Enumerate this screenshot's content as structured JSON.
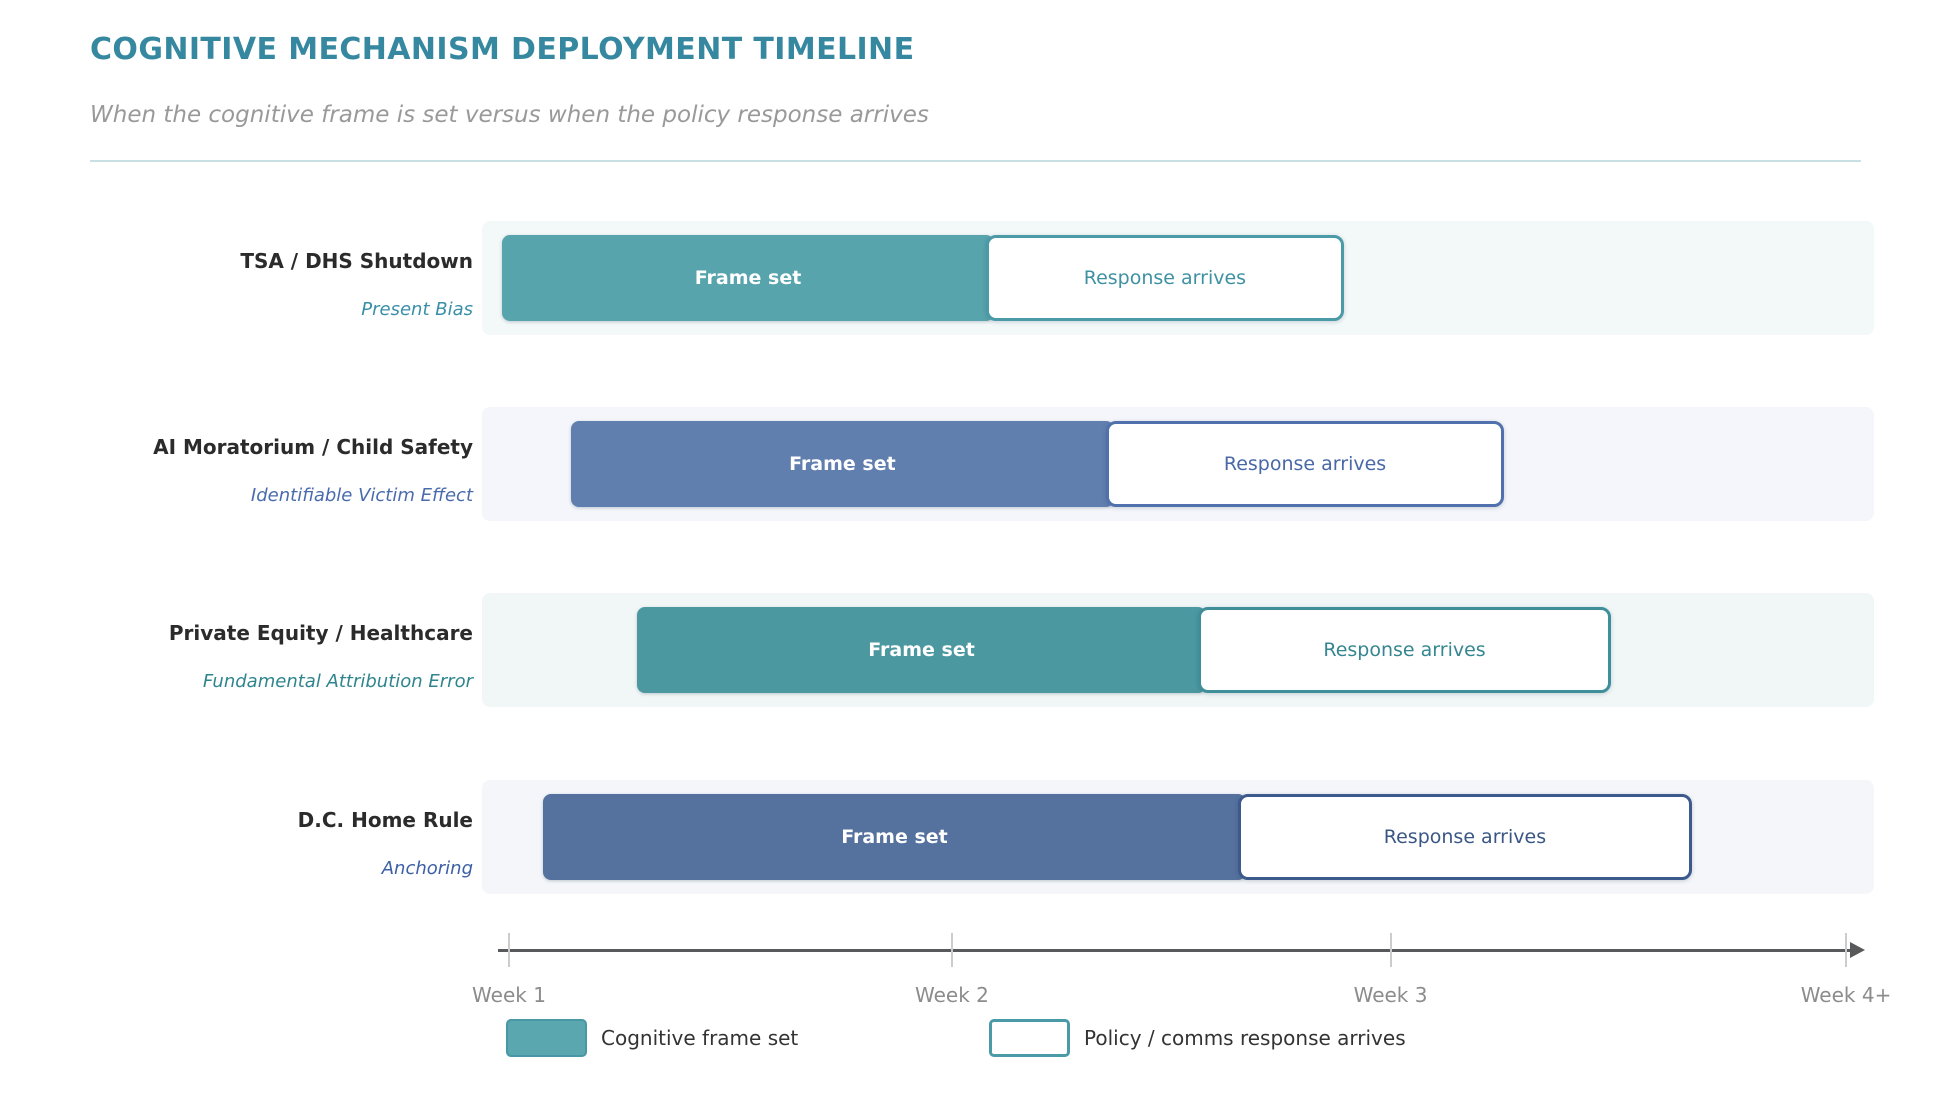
{
  "header": {
    "title": "COGNITIVE MECHANISM DEPLOYMENT TIMELINE",
    "title_color": "#35889f",
    "subtitle": "When the cognitive frame is set versus when the policy response arrives"
  },
  "bar_labels": {
    "frame": "Frame set",
    "response": "Response arrives"
  },
  "rows": [
    {
      "label": "TSA / DHS Shutdown",
      "mechanism": "Present Bias",
      "colors": {
        "bar": "#58a4ad",
        "track": "#f3f8f9",
        "border": "#4a9aa8",
        "text": "#3e91a2",
        "mechanism_text": "#3a8fa8"
      },
      "frame": {
        "left_pct": 1.44,
        "width_pct": 34.77
      },
      "response": {
        "left_pct": 36.2,
        "width_pct": 25.72
      }
    },
    {
      "label": "AI Moratorium / Child Safety",
      "mechanism": "Identifiable Victim Effect",
      "colors": {
        "bar": "#617fae",
        "track": "#f4f6fb",
        "border": "#5071ae",
        "text": "#4868a6",
        "mechanism_text": "#4a6cad"
      },
      "frame": {
        "left_pct": 6.39,
        "width_pct": 38.43
      },
      "response": {
        "left_pct": 44.83,
        "width_pct": 28.59
      }
    },
    {
      "label": "Private Equity / Healthcare",
      "mechanism": "Fundamental Attribution Error",
      "colors": {
        "bar": "#4c98a1",
        "track": "#f1f7f7",
        "border": "#3e8f99",
        "text": "#35868f",
        "mechanism_text": "#2f858e"
      },
      "frame": {
        "left_pct": 11.14,
        "width_pct": 40.3
      },
      "response": {
        "left_pct": 51.44,
        "width_pct": 29.67
      }
    },
    {
      "label": "D.C. Home Rule",
      "mechanism": "Anchoring",
      "colors": {
        "bar": "#55719d",
        "track": "#f4f6fa",
        "border": "#3c5a8b",
        "text": "#395684",
        "mechanism_text": "#3c5fa5"
      },
      "frame": {
        "left_pct": 4.38,
        "width_pct": 49.93
      },
      "response": {
        "left_pct": 54.31,
        "width_pct": 32.61
      }
    }
  ],
  "axis": {
    "ticks": [
      {
        "label": "Week 1",
        "pos_pct": 1.94
      },
      {
        "label": "Week 2",
        "pos_pct": 33.76
      },
      {
        "label": "Week 3",
        "pos_pct": 65.27
      },
      {
        "label": "Week 4+",
        "pos_pct": 97.99
      }
    ]
  },
  "legend": [
    {
      "label": "Cognitive frame set",
      "swatch": "filled",
      "fill": "#5ba7b0",
      "border": "#4897a5"
    },
    {
      "label": "Policy / comms response arrives",
      "swatch": "outlined",
      "fill": "#ffffff",
      "border": "#4a9aa8"
    }
  ],
  "chart_data": {
    "type": "bar",
    "subtype": "horizontal-range-timeline",
    "title": "COGNITIVE MECHANISM DEPLOYMENT TIMELINE",
    "subtitle": "When the cognitive frame is set versus when the policy response arrives",
    "categories": [
      "TSA / DHS Shutdown",
      "AI Moratorium / Child Safety",
      "Private Equity / Healthcare",
      "D.C. Home Rule"
    ],
    "category_mechanisms": [
      "Present Bias",
      "Identifiable Victim Effect",
      "Fundamental Attribution Error",
      "Anchoring"
    ],
    "series": [
      {
        "name": "Cognitive frame set",
        "bar_label": "Frame set",
        "ranges_weeks": [
          [
            1.0,
            2.07
          ],
          [
            1.14,
            2.34
          ],
          [
            1.29,
            2.55
          ],
          [
            1.08,
            2.64
          ]
        ]
      },
      {
        "name": "Policy / comms response arrives",
        "bar_label": "Response arrives",
        "ranges_weeks": [
          [
            2.07,
            2.87
          ],
          [
            2.34,
            3.23
          ],
          [
            2.55,
            3.47
          ],
          [
            2.64,
            3.65
          ]
        ]
      }
    ],
    "xlabel": "",
    "ylabel": "",
    "x_tick_labels": [
      "Week 1",
      "Week 2",
      "Week 3",
      "Week 4+"
    ],
    "xlim_weeks": [
      1,
      4
    ],
    "grid": false,
    "legend_position": "bottom"
  }
}
